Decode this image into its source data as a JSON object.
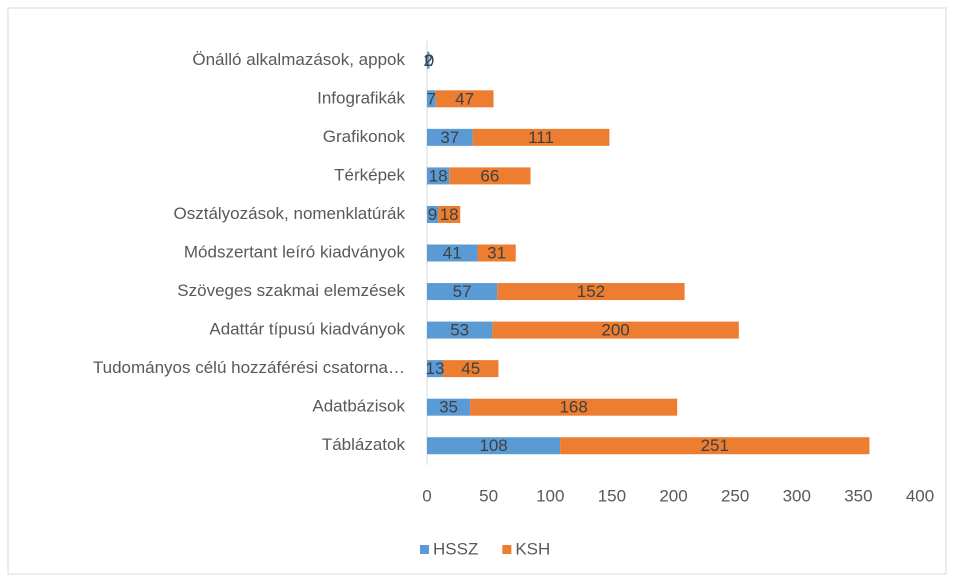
{
  "chart_data": {
    "type": "bar",
    "orientation": "horizontal",
    "stacked": true,
    "categories": [
      "Önálló alkalmazások, appok",
      "Infografikák",
      "Grafikonok",
      "Térképek",
      "Osztályozások, nomenklatúrák",
      "Módszertant leíró kiadványok",
      "Szöveges szakmai elemzések",
      "Adattár típusú kiadványok",
      "Tudományos célú hozzáférési csatorna…",
      "Adatbázisok",
      "Táblázatok"
    ],
    "series": [
      {
        "name": "HSSZ",
        "color": "#5b9bd5",
        "values": [
          2,
          7,
          37,
          18,
          9,
          41,
          57,
          53,
          13,
          35,
          108
        ]
      },
      {
        "name": "KSH",
        "color": "#ed7d31",
        "values": [
          0,
          47,
          111,
          66,
          18,
          31,
          152,
          200,
          45,
          168,
          251
        ]
      }
    ],
    "xlim": [
      0,
      400
    ],
    "xticks": [
      0,
      50,
      100,
      150,
      200,
      250,
      300,
      350,
      400
    ],
    "grid": false,
    "legend": "bottom"
  }
}
